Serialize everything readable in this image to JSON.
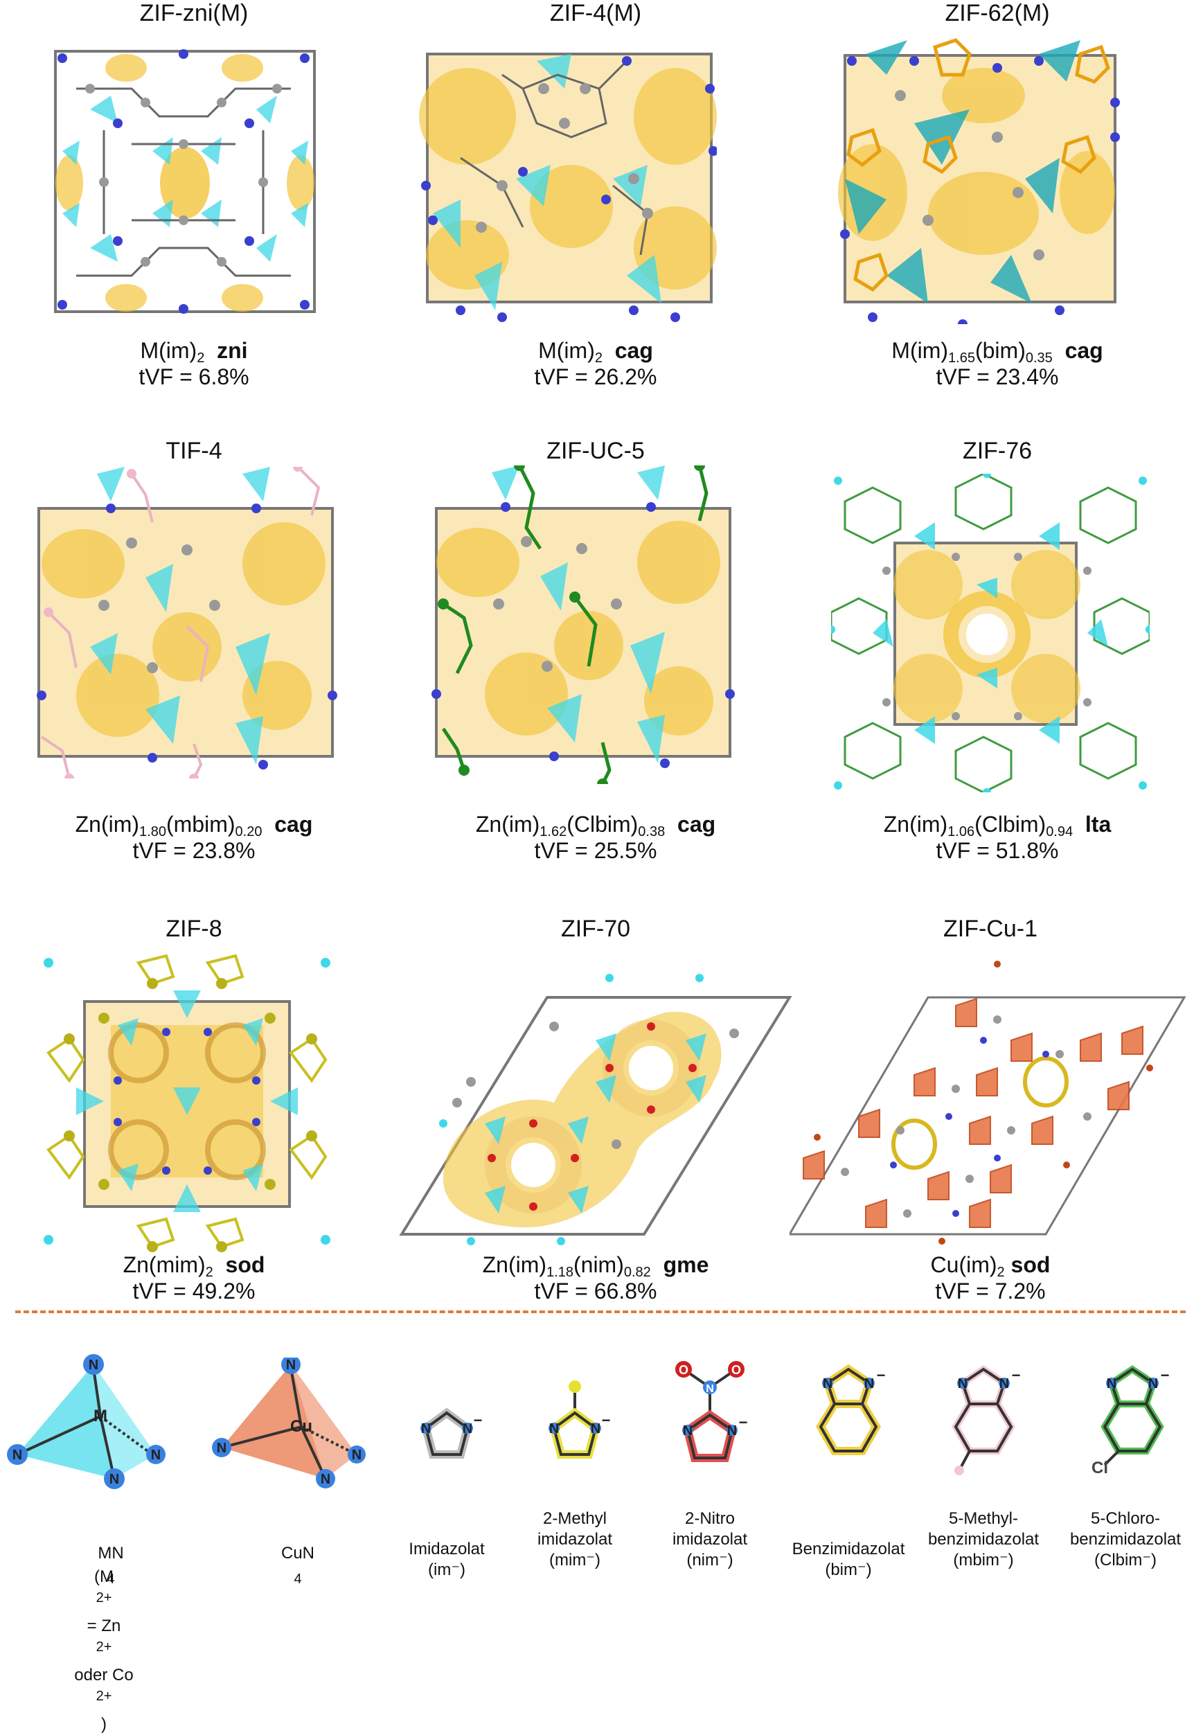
{
  "colors": {
    "zn_tetra": "#3fd8e8",
    "cu_tetra": "#e8774a",
    "pore": "#f2c43c",
    "nitrogen": "#3a3fd0",
    "carbon": "#a0a0a0",
    "methyl": "#d8d02a",
    "chloro": "#1f8a1f",
    "mbim": "#f0c0c8",
    "bim": "#f0a820",
    "nitro": "#d02020",
    "divider": "#e07a3c"
  },
  "panels": [
    {
      "title": "ZIF-zni(M)",
      "formula_main": "M(im)",
      "formula_sub": "2",
      "topology": "zni",
      "tvf": "tVF = 6.8%"
    },
    {
      "title": "ZIF-4(M)",
      "formula_main": "M(im)",
      "formula_sub": "2",
      "topology": "cag",
      "tvf": "tVF = 26.2%"
    },
    {
      "title": "ZIF-62(M)",
      "formula_main": "M(im)",
      "formula_sub": "1.65",
      "formula_mid": "(bim)",
      "formula_sub2": "0.35",
      "topology": "cag",
      "tvf": "tVF = 23.4%"
    },
    {
      "title": "TIF-4",
      "formula_main": "Zn(im)",
      "formula_sub": "1.80",
      "formula_mid": "(mbim)",
      "formula_sub2": "0.20",
      "topology": "cag",
      "tvf": "tVF = 23.8%"
    },
    {
      "title": "ZIF-UC-5",
      "formula_main": "Zn(im)",
      "formula_sub": "1.62",
      "formula_mid": "(Clbim)",
      "formula_sub2": "0.38",
      "topology": "cag",
      "tvf": "tVF = 25.5%"
    },
    {
      "title": "ZIF-76",
      "formula_main": "Zn(im)",
      "formula_sub": "1.06",
      "formula_mid": "(Clbim)",
      "formula_sub2": "0.94",
      "topology": "lta",
      "tvf": "tVF =  51.8%"
    },
    {
      "title": "ZIF-8",
      "formula_main": "Zn(mim)",
      "formula_sub": "2",
      "topology": "sod",
      "tvf": "tVF =  49.2%"
    },
    {
      "title": "ZIF-70",
      "formula_main": "Zn(im)",
      "formula_sub": "1.18",
      "formula_mid": "(nim)",
      "formula_sub2": "0.82",
      "topology": "gme",
      "tvf": "tVF = 66.8%"
    },
    {
      "title": "ZIF-Cu-1",
      "formula_main": "Cu(im)",
      "formula_sub": "2",
      "topology": "sod",
      "tvf": "tVF = 7.2%"
    }
  ],
  "legend": {
    "mn4": {
      "label": "MN",
      "label_sub": "4",
      "center": "M",
      "n": "N",
      "note_a": "(M",
      "note_sup1": "2+",
      "note_b": " = Zn",
      "note_sup2": "2+",
      "note_c": " oder Co",
      "note_sup3": "2+",
      "note_d": ")"
    },
    "cun4": {
      "label": "CuN",
      "label_sub": "4",
      "center": "Cu",
      "n": "N"
    },
    "ligands": [
      {
        "name": "Imidazolat",
        "abbr": "(im⁻)"
      },
      {
        "name": "2-Methyl",
        "name2": "imidazolat",
        "abbr": "(mim⁻)"
      },
      {
        "name": "2-Nitro",
        "name2": "imidazolat",
        "abbr": "(nim⁻)"
      },
      {
        "name": "Benzimidazolat",
        "abbr": "(bim⁻)"
      },
      {
        "name": "5-Methyl-",
        "name2": "benzimidazolat",
        "abbr": "(mbim⁻)"
      },
      {
        "name": "5-Chloro-",
        "name2": "benzimidazolat",
        "abbr": "(Clbim⁻)"
      }
    ],
    "atom_n": "N",
    "atom_cl": "Cl",
    "charge": "−"
  }
}
